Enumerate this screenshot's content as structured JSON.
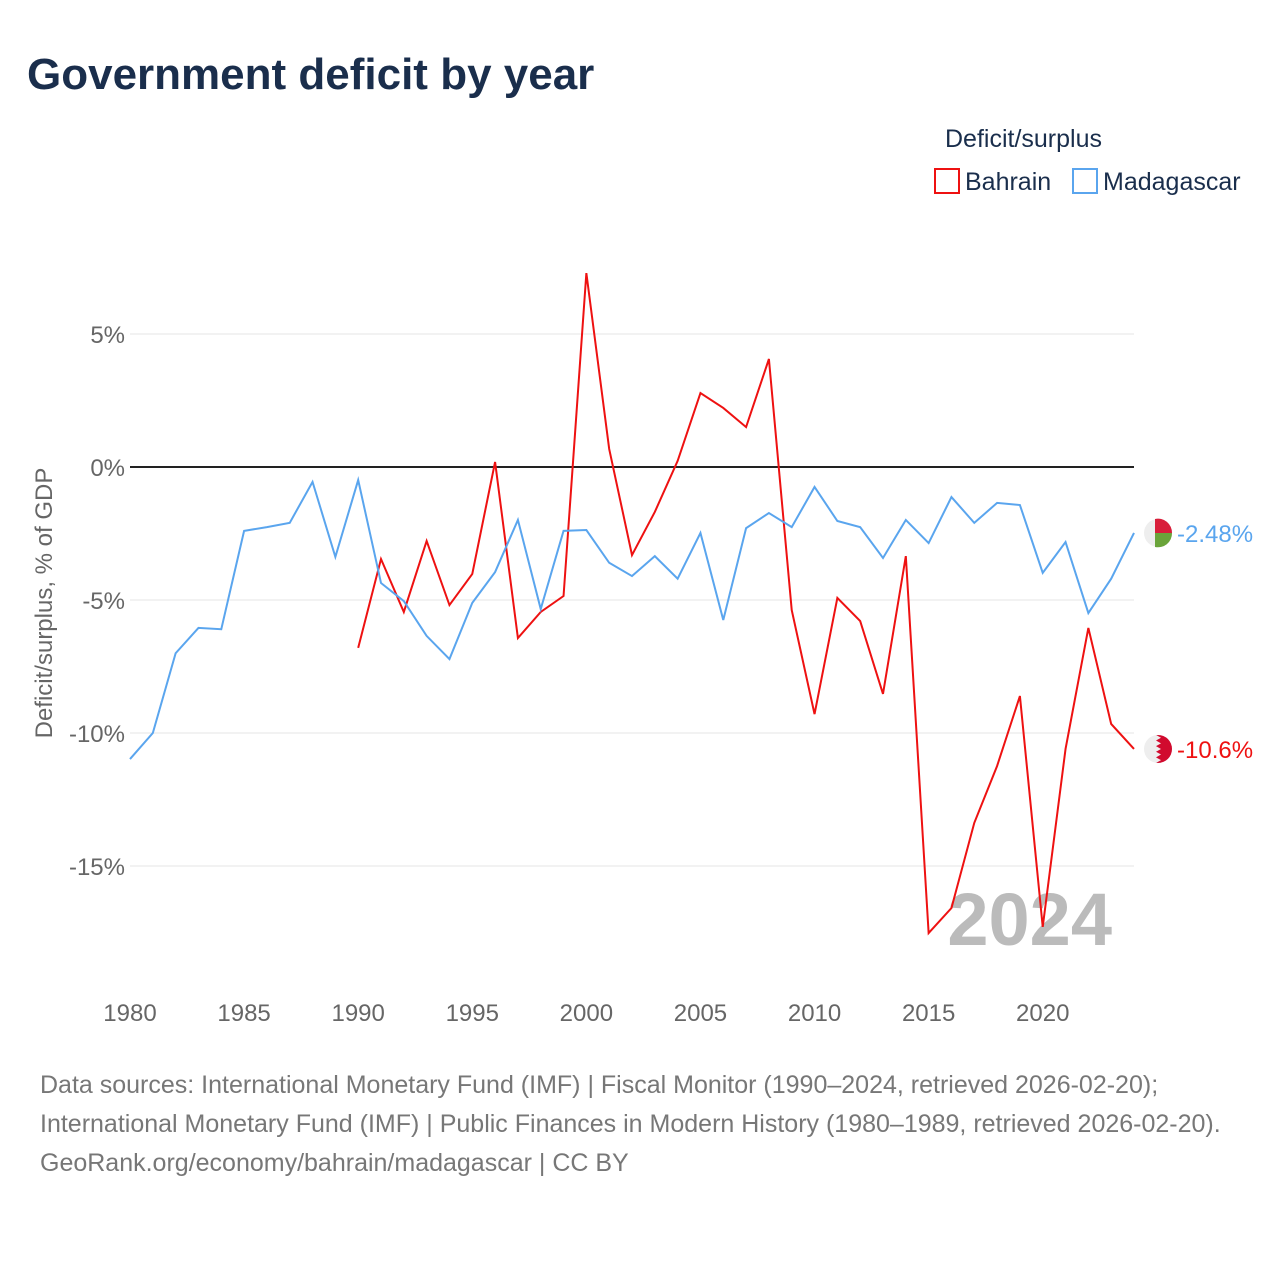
{
  "title": "Government deficit by year",
  "footer": {
    "sources": "Data sources: International Monetary Fund (IMF) | Fiscal Monitor (1990–2024, retrieved 2026-02-20); International Monetary Fund (IMF) | Public Finances in Modern History (1980–1989, retrieved 2026-02-20).",
    "credit": "GeoRank.org/economy/bahrain/madagascar | CC BY"
  },
  "chart_data": {
    "type": "line",
    "title": "Government deficit by year",
    "xlabel": "",
    "ylabel": "Deficit/surplus, % of GDP",
    "legend_title": "Deficit/surplus",
    "legend_position": "top-right",
    "year_watermark": "2024",
    "xlim": [
      1980,
      2024
    ],
    "ylim": [
      -19,
      8
    ],
    "xticks": [
      "1980",
      "1985",
      "1990",
      "1995",
      "2000",
      "2005",
      "2010",
      "2015",
      "2020"
    ],
    "yticks": [
      {
        "v": 5,
        "label": "5%"
      },
      {
        "v": 0,
        "label": "0%"
      },
      {
        "v": -5,
        "label": "-5%"
      },
      {
        "v": -10,
        "label": "-10%"
      },
      {
        "v": -15,
        "label": "-15%"
      }
    ],
    "series": [
      {
        "name": "Bahrain",
        "color": "#ee1111",
        "end_label": "-10.6%",
        "start": 1990,
        "values": [
          -6.8,
          -3.46,
          -5.45,
          -2.78,
          -5.19,
          -4.02,
          0.19,
          -6.43,
          -5.45,
          -4.85,
          7.29,
          0.68,
          -3.31,
          -1.69,
          0.23,
          2.78,
          2.22,
          1.5,
          4.06,
          -5.38,
          -9.29,
          -4.92,
          -5.79,
          -8.53,
          -3.35,
          -17.52,
          -16.58,
          -13.38,
          -11.24,
          -8.61,
          -17.29,
          -10.6,
          -6.05,
          -9.66,
          -10.6
        ]
      },
      {
        "name": "Madagascar",
        "color": "#5aa5ee",
        "end_label": "-2.48%",
        "start": 1980,
        "values": [
          -10.98,
          -10.0,
          -7.0,
          -6.05,
          -6.1,
          -2.4,
          -2.26,
          -2.1,
          -0.56,
          -3.38,
          -0.49,
          -4.36,
          -5.04,
          -6.35,
          -7.22,
          -5.11,
          -3.95,
          -1.99,
          -5.34,
          -2.4,
          -2.37,
          -3.6,
          -4.1,
          -3.35,
          -4.2,
          -2.48,
          -5.75,
          -2.3,
          -1.73,
          -2.26,
          -0.75,
          -2.03,
          -2.26,
          -3.42,
          -1.99,
          -2.86,
          -1.13,
          -2.1,
          -1.35,
          -1.43,
          -3.98,
          -2.82,
          -5.49,
          -4.2,
          -2.48
        ]
      }
    ]
  }
}
